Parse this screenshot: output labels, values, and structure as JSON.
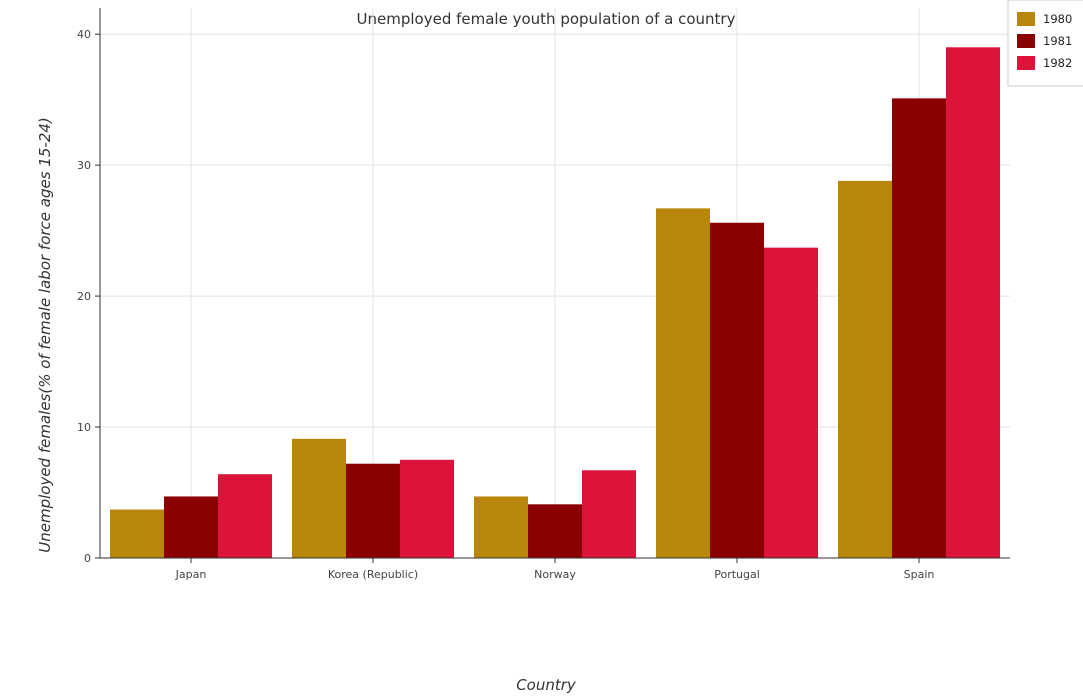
{
  "title": "Unemployed female youth population of a country",
  "chart_data": {
    "type": "bar",
    "title": "Unemployed female youth population of a country",
    "xlabel": "Country",
    "ylabel": "Unemployed females(% of female labor force ages 15-24)",
    "categories": [
      "Japan",
      "Korea (Republic)",
      "Norway",
      "Portugal",
      "Spain"
    ],
    "series": [
      {
        "name": "1980",
        "color": "#b8860b",
        "values": [
          3.7,
          9.1,
          4.7,
          26.7,
          28.8
        ]
      },
      {
        "name": "1981",
        "color": "#8b0000",
        "values": [
          4.7,
          7.2,
          4.1,
          25.6,
          35.1
        ]
      },
      {
        "name": "1982",
        "color": "#dc143c",
        "values": [
          6.4,
          7.5,
          6.7,
          23.7,
          39.0
        ]
      }
    ],
    "ylim": [
      0,
      42
    ],
    "yticks": [
      0,
      10,
      20,
      30,
      40
    ],
    "grid": true,
    "legend_position": "top-right"
  }
}
